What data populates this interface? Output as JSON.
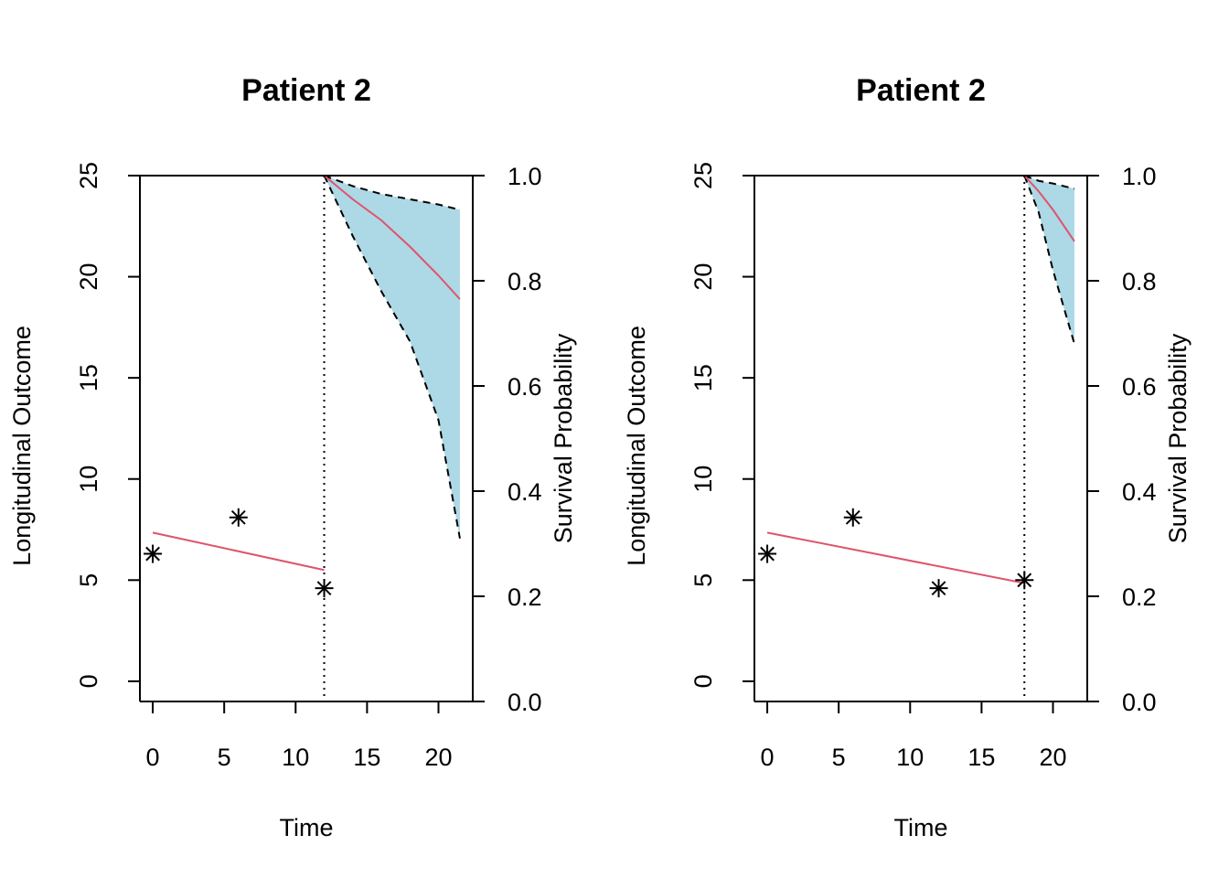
{
  "chart_data": [
    {
      "type": "line",
      "title": "Patient 2",
      "xlabel": "Time",
      "ylabel": "Longitudinal Outcome",
      "y2label": "Survival Probability",
      "xlim": [
        -0.9,
        22.4
      ],
      "ylim": [
        -1,
        25
      ],
      "y2lim": [
        0,
        1
      ],
      "xticks": [
        "0",
        "5",
        "10",
        "15",
        "20"
      ],
      "yticks": [
        "0",
        "5",
        "10",
        "15",
        "20",
        "25"
      ],
      "y2ticks": [
        "0.0",
        "0.2",
        "0.4",
        "0.6",
        "0.8",
        "1.0"
      ],
      "landmark_time": 12,
      "observations": [
        {
          "x": 0,
          "y": 6.3
        },
        {
          "x": 6,
          "y": 8.1
        },
        {
          "x": 12,
          "y": 4.6
        }
      ],
      "longitudinal_fit": [
        {
          "x": 0,
          "y": 7.35
        },
        {
          "x": 12,
          "y": 5.5
        }
      ],
      "survival": {
        "time": [
          12,
          14,
          16,
          18,
          20,
          21.5
        ],
        "mean": [
          1.0,
          0.955,
          0.915,
          0.865,
          0.81,
          0.765
        ],
        "upper": [
          1.0,
          0.98,
          0.965,
          0.955,
          0.945,
          0.935
        ],
        "lower": [
          1.0,
          0.885,
          0.78,
          0.685,
          0.535,
          0.31
        ]
      },
      "colors": {
        "fit": "#DF536B",
        "band": "#ADD8E6",
        "points": "#000000"
      }
    },
    {
      "type": "line",
      "title": "Patient 2",
      "xlabel": "Time",
      "ylabel": "Longitudinal Outcome",
      "y2label": "Survival Probability",
      "xlim": [
        -0.9,
        22.4
      ],
      "ylim": [
        -1,
        25
      ],
      "y2lim": [
        0,
        1
      ],
      "xticks": [
        "0",
        "5",
        "10",
        "15",
        "20"
      ],
      "yticks": [
        "0",
        "5",
        "10",
        "15",
        "20",
        "25"
      ],
      "y2ticks": [
        "0.0",
        "0.2",
        "0.4",
        "0.6",
        "0.8",
        "1.0"
      ],
      "landmark_time": 18,
      "observations": [
        {
          "x": 0,
          "y": 6.3
        },
        {
          "x": 6,
          "y": 8.1
        },
        {
          "x": 12,
          "y": 4.6
        },
        {
          "x": 18,
          "y": 5.0
        }
      ],
      "longitudinal_fit": [
        {
          "x": 0,
          "y": 7.35
        },
        {
          "x": 18,
          "y": 4.85
        }
      ],
      "survival": {
        "time": [
          18,
          19,
          20,
          21.5
        ],
        "mean": [
          1.0,
          0.97,
          0.935,
          0.875
        ],
        "upper": [
          1.0,
          0.99,
          0.985,
          0.975
        ],
        "lower": [
          1.0,
          0.93,
          0.82,
          0.68
        ]
      },
      "colors": {
        "fit": "#DF536B",
        "band": "#ADD8E6",
        "points": "#000000"
      }
    }
  ]
}
